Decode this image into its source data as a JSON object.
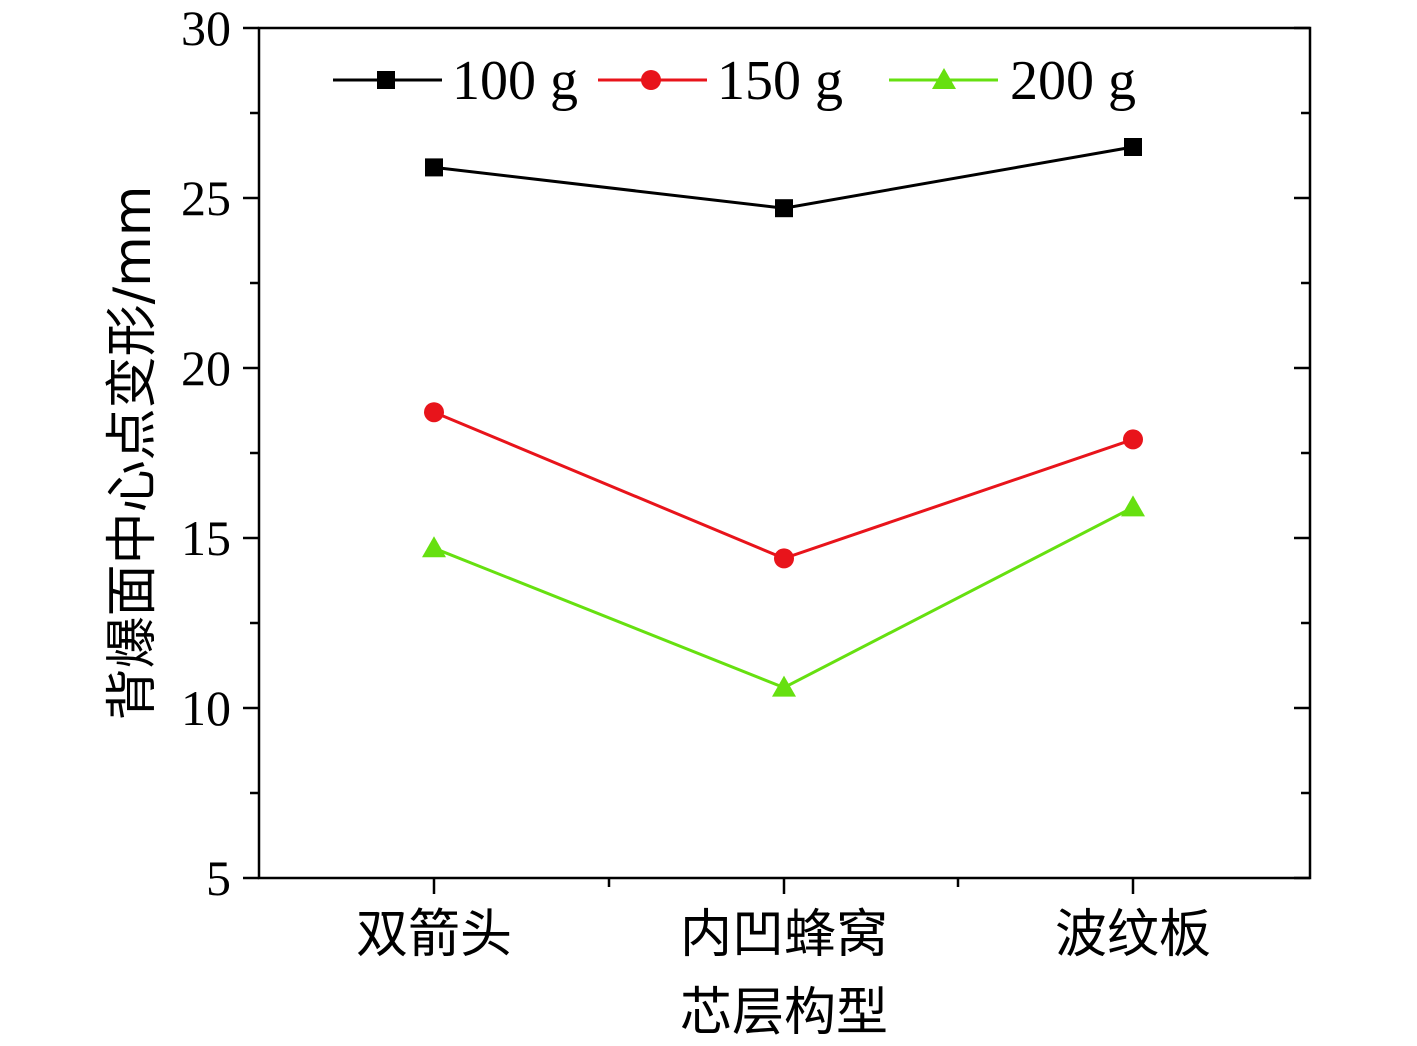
{
  "chart_data": {
    "type": "line",
    "title": "",
    "xlabel": "芯层构型",
    "ylabel": "背爆面中心点变形/mm",
    "categories": [
      "双箭头",
      "内凹蜂窝",
      "波纹板"
    ],
    "ylim": [
      5,
      30
    ],
    "yticks": [
      5,
      10,
      15,
      20,
      25,
      30
    ],
    "grid": false,
    "legend_position": "top",
    "series": [
      {
        "name": "100 g",
        "color": "#000000",
        "marker": "square",
        "values": [
          25.9,
          24.7,
          26.5
        ]
      },
      {
        "name": "150 g",
        "color": "#e8141b",
        "marker": "circle",
        "values": [
          18.7,
          14.4,
          17.9
        ]
      },
      {
        "name": "200 g",
        "color": "#66e010",
        "marker": "triangle",
        "values": [
          14.7,
          10.6,
          15.9
        ]
      }
    ]
  }
}
